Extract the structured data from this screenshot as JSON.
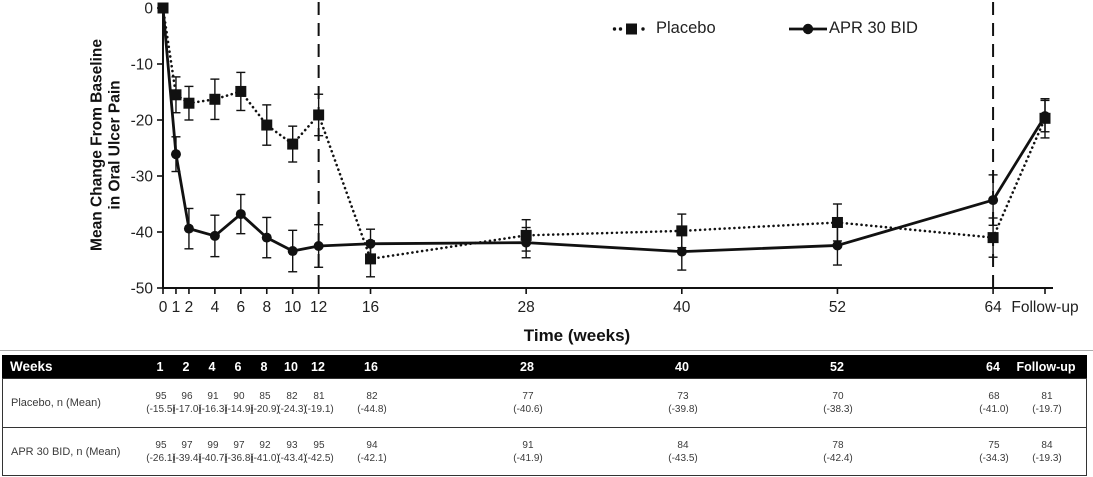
{
  "chart_data": {
    "type": "line",
    "title": "",
    "y_axis": {
      "title_line1": "Mean Change From Baseline",
      "title_line2": "in Oral Ulcer Pain",
      "ticks": [
        0,
        -10,
        -20,
        -30,
        -40,
        -50
      ],
      "range": [
        -50,
        0
      ]
    },
    "x_axis": {
      "title": "Time (weeks)",
      "tick_labels": [
        "0",
        "1",
        "2",
        "4",
        "6",
        "8",
        "10",
        "12",
        "16",
        "28",
        "40",
        "52",
        "64",
        "Follow-up"
      ],
      "week_values": [
        0,
        1,
        2,
        4,
        6,
        8,
        10,
        12,
        16,
        28,
        40,
        52,
        64
      ]
    },
    "reference_lines_at_weeks": [
      12,
      64
    ],
    "legend_position": "top-right",
    "grid": false,
    "series": [
      {
        "name": "Placebo",
        "line_style": "dotted",
        "marker": "square",
        "values": [
          0,
          -15.5,
          -17.0,
          -16.3,
          -14.9,
          -20.9,
          -24.3,
          -19.1,
          -44.8,
          -40.6,
          -39.8,
          -38.3,
          -41.0,
          -19.7
        ],
        "error": [
          0,
          3.2,
          3.0,
          3.6,
          3.4,
          3.6,
          3.2,
          3.7,
          3.2,
          2.8,
          3.0,
          3.3,
          3.5,
          3.5
        ]
      },
      {
        "name": "APR 30 BID",
        "line_style": "solid",
        "marker": "circle",
        "values": [
          0,
          -26.1,
          -39.4,
          -40.7,
          -36.8,
          -41.0,
          -43.4,
          -42.5,
          -42.1,
          -41.9,
          -43.5,
          -42.4,
          -34.3,
          -19.3
        ],
        "error": [
          0,
          3.1,
          3.6,
          3.7,
          3.5,
          3.6,
          3.7,
          3.8,
          2.6,
          2.7,
          3.3,
          3.5,
          4.5,
          2.8
        ]
      }
    ],
    "colors": {
      "foreground": "#000000",
      "background": "#ffffff"
    }
  },
  "table": {
    "header_label": "Weeks",
    "columns": [
      "1",
      "2",
      "4",
      "6",
      "8",
      "10",
      "12",
      "16",
      "28",
      "40",
      "52",
      "64",
      "Follow-up"
    ],
    "rows": [
      {
        "label": "Placebo, n (Mean)",
        "n": [
          "95",
          "96",
          "91",
          "90",
          "85",
          "82",
          "81",
          "82",
          "77",
          "73",
          "70",
          "68",
          "81"
        ],
        "mean": [
          "(-15.5)",
          "(-17.0)",
          "(-16.3)",
          "(-14.9)",
          "(-20.9)",
          "(-24.3)",
          "(-19.1)",
          "(-44.8)",
          "(-40.6)",
          "(-39.8)",
          "(-38.3)",
          "(-41.0)",
          "(-19.7)"
        ]
      },
      {
        "label": "APR 30 BID, n (Mean)",
        "n": [
          "95",
          "97",
          "99",
          "97",
          "92",
          "93",
          "95",
          "94",
          "91",
          "84",
          "78",
          "75",
          "84"
        ],
        "mean": [
          "(-26.1)",
          "(-39.4)",
          "(-40.7)",
          "(-36.8)",
          "(-41.0)",
          "(-43.4)",
          "(-42.5)",
          "(-42.1)",
          "(-41.9)",
          "(-43.5)",
          "(-42.4)",
          "(-34.3)",
          "(-19.3)"
        ]
      }
    ],
    "header_bg": "#000000",
    "header_fg": "#ffffff"
  }
}
